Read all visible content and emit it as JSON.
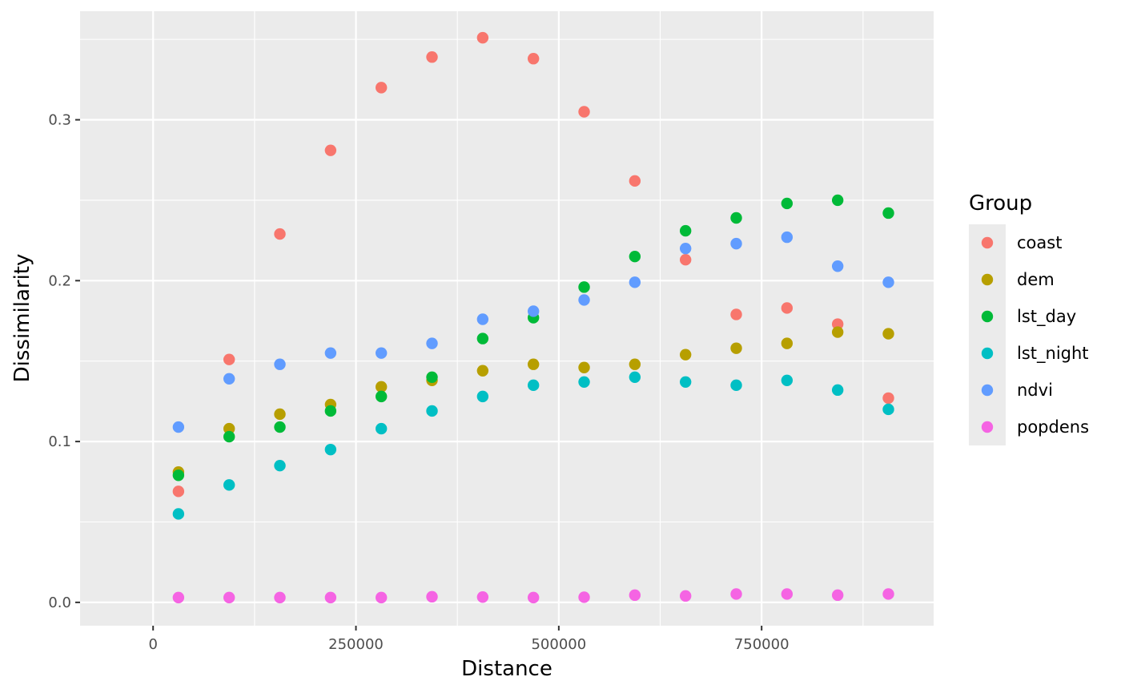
{
  "chart_data": {
    "type": "scatter",
    "title": "",
    "xlabel": "Distance",
    "ylabel": "Dissimilarity",
    "xlim": [
      -90000,
      962000
    ],
    "ylim": [
      -0.0145,
      0.3675
    ],
    "x_ticks": [
      0,
      250000,
      500000,
      750000
    ],
    "x_tick_labels": [
      "0",
      "250000",
      "500000",
      "750000"
    ],
    "x_minor_ticks": [
      125000,
      375000,
      625000,
      875000
    ],
    "y_ticks": [
      0.0,
      0.1,
      0.2,
      0.3
    ],
    "y_tick_labels": [
      "0.0",
      "0.1",
      "0.2",
      "0.3"
    ],
    "y_minor_ticks": [
      0.05,
      0.15,
      0.25,
      0.35
    ],
    "grid": true,
    "legend": {
      "title": "Group",
      "placement": "right"
    },
    "x": [
      31250,
      93750,
      156250,
      218750,
      281250,
      343750,
      406250,
      468750,
      531250,
      593750,
      656250,
      718750,
      781250,
      843750,
      906250
    ],
    "series": [
      {
        "name": "coast",
        "color": "#F8766D",
        "values": [
          0.069,
          0.151,
          0.229,
          0.281,
          0.32,
          0.339,
          0.351,
          0.338,
          0.305,
          0.262,
          0.213,
          0.179,
          0.183,
          0.173,
          0.127
        ]
      },
      {
        "name": "dem",
        "color": "#B79F00",
        "values": [
          0.081,
          0.108,
          0.117,
          0.123,
          0.134,
          0.138,
          0.144,
          0.148,
          0.146,
          0.148,
          0.154,
          0.158,
          0.161,
          0.168,
          0.167
        ]
      },
      {
        "name": "lst_day",
        "color": "#00BA38",
        "values": [
          0.079,
          0.103,
          0.109,
          0.119,
          0.128,
          0.14,
          0.164,
          0.177,
          0.196,
          0.215,
          0.231,
          0.239,
          0.248,
          0.25,
          0.242
        ]
      },
      {
        "name": "lst_night",
        "color": "#00BFC4",
        "values": [
          0.055,
          0.073,
          0.085,
          0.095,
          0.108,
          0.119,
          0.128,
          0.135,
          0.137,
          0.14,
          0.137,
          0.135,
          0.138,
          0.132,
          0.12
        ]
      },
      {
        "name": "ndvi",
        "color": "#619CFF",
        "values": [
          0.109,
          0.139,
          0.148,
          0.155,
          0.155,
          0.161,
          0.176,
          0.181,
          0.188,
          0.199,
          0.22,
          0.223,
          0.227,
          0.209,
          0.199
        ]
      },
      {
        "name": "popdens",
        "color": "#F564E3",
        "values": [
          0.003,
          0.003,
          0.003,
          0.003,
          0.003,
          0.0035,
          0.0033,
          0.003,
          0.0032,
          0.0045,
          0.004,
          0.0052,
          0.0052,
          0.0045,
          0.0052
        ]
      }
    ]
  }
}
